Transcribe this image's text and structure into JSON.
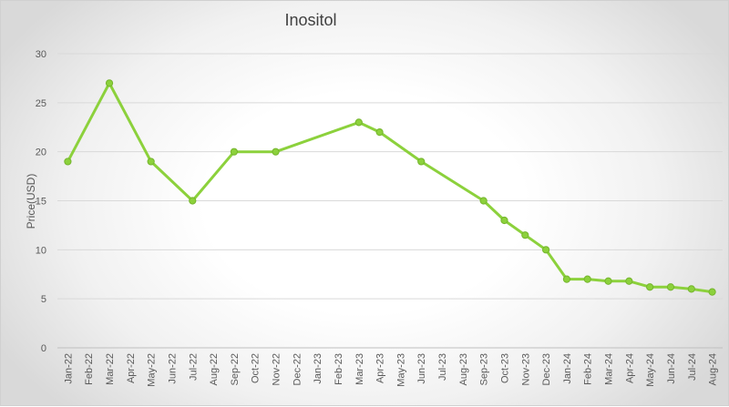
{
  "chart_data": {
    "type": "line",
    "title": "Inositol",
    "xlabel": "",
    "ylabel": "Price(USD)",
    "ylim": [
      0,
      30
    ],
    "yticks": [
      0,
      5,
      10,
      15,
      20,
      25,
      30
    ],
    "grid": true,
    "legend": "none",
    "colors": {
      "line": "#8cd13c",
      "marker": "#8cd13c",
      "grid": "#d9d9d9"
    },
    "categories": [
      "Jan-22",
      "Feb-22",
      "Mar-22",
      "Apr-22",
      "May-22",
      "Jun-22",
      "Jul-22",
      "Aug-22",
      "Sep-22",
      "Oct-22",
      "Nov-22",
      "Dec-22",
      "Jan-23",
      "Feb-23",
      "Mar-23",
      "Apr-23",
      "May-23",
      "Jun-23",
      "Jul-23",
      "Aug-23",
      "Sep-23",
      "Oct-23",
      "Nov-23",
      "Dec-23",
      "Jan-24",
      "Feb-24",
      "Mar-24",
      "Apr-24",
      "May-24",
      "Jun-24",
      "Jul-24",
      "Aug-24"
    ],
    "series": [
      {
        "points": [
          {
            "x": "Jan-22",
            "y": 19
          },
          {
            "x": "Mar-22",
            "y": 27
          },
          {
            "x": "May-22",
            "y": 19
          },
          {
            "x": "Jul-22",
            "y": 15
          },
          {
            "x": "Sep-22",
            "y": 20
          },
          {
            "x": "Nov-22",
            "y": 20
          },
          {
            "x": "Mar-23",
            "y": 23
          },
          {
            "x": "Apr-23",
            "y": 22
          },
          {
            "x": "Jun-23",
            "y": 19
          },
          {
            "x": "Sep-23",
            "y": 15
          },
          {
            "x": "Oct-23",
            "y": 13
          },
          {
            "x": "Nov-23",
            "y": 11.5
          },
          {
            "x": "Dec-23",
            "y": 10
          },
          {
            "x": "Jan-24",
            "y": 7
          },
          {
            "x": "Feb-24",
            "y": 7
          },
          {
            "x": "Mar-24",
            "y": 6.8
          },
          {
            "x": "Apr-24",
            "y": 6.8
          },
          {
            "x": "May-24",
            "y": 6.2
          },
          {
            "x": "Jun-24",
            "y": 6.2
          },
          {
            "x": "Jul-24",
            "y": 6
          },
          {
            "x": "Aug-24",
            "y": 5.7
          }
        ]
      }
    ]
  }
}
